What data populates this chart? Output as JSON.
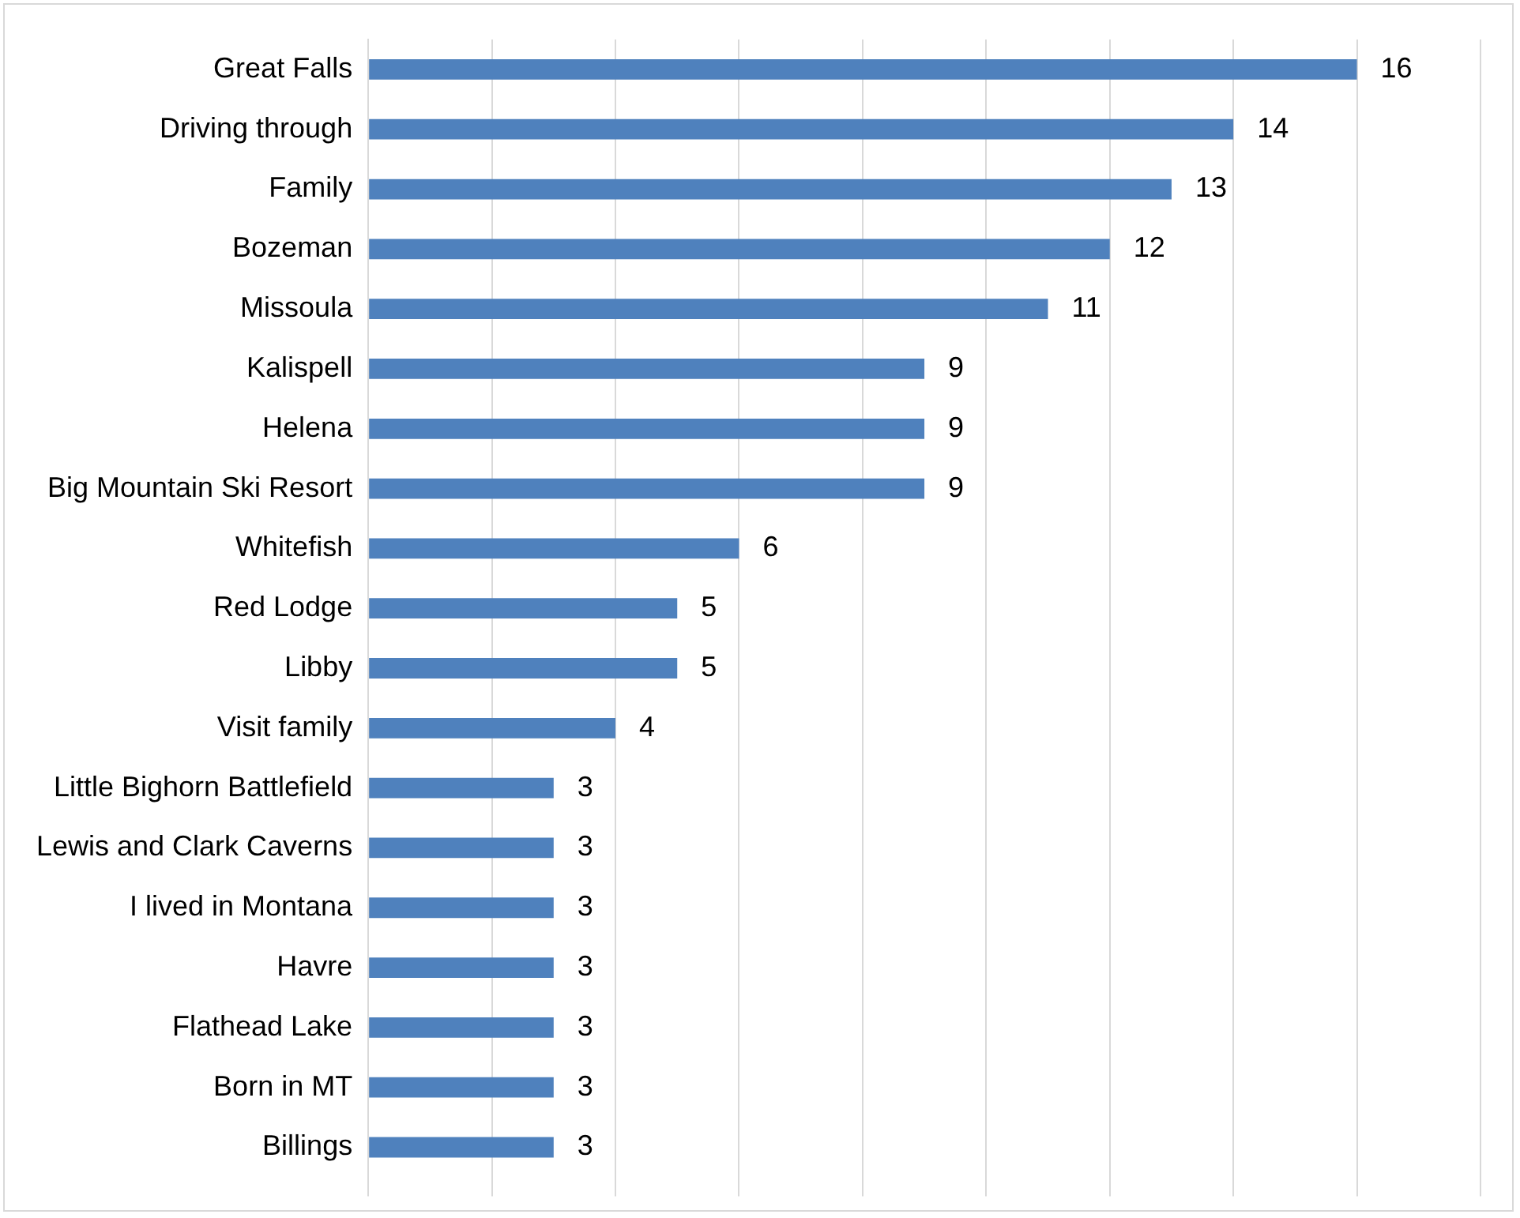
{
  "chart_data": {
    "type": "bar",
    "orientation": "horizontal",
    "categories": [
      "Great Falls",
      "Driving through",
      "Family",
      "Bozeman",
      "Missoula",
      "Kalispell",
      "Helena",
      "Big Mountain Ski Resort",
      "Whitefish",
      "Red Lodge",
      "Libby",
      "Visit family",
      "Little Bighorn Battlefield",
      "Lewis and Clark Caverns",
      "I lived in Montana",
      "Havre",
      "Flathead Lake",
      "Born in MT",
      "Billings"
    ],
    "values": [
      16,
      14,
      13,
      12,
      11,
      9,
      9,
      9,
      6,
      5,
      5,
      4,
      3,
      3,
      3,
      3,
      3,
      3,
      3
    ],
    "color": "#4f81bd",
    "xlim": [
      0,
      18
    ],
    "xticks": [
      {
        "value": 0,
        "label": null
      },
      {
        "value": 2,
        "label": null
      },
      {
        "value": 4,
        "label": null
      },
      {
        "value": 6,
        "label": null
      },
      {
        "value": 8,
        "label": null
      },
      {
        "value": 10,
        "label": null
      },
      {
        "value": 12,
        "label": null
      },
      {
        "value": 14,
        "label": null
      },
      {
        "value": 16,
        "label": null
      },
      {
        "value": 18,
        "label": null
      }
    ],
    "grid": "x",
    "tick_labels": "y",
    "data_labels": true,
    "legend": false
  }
}
